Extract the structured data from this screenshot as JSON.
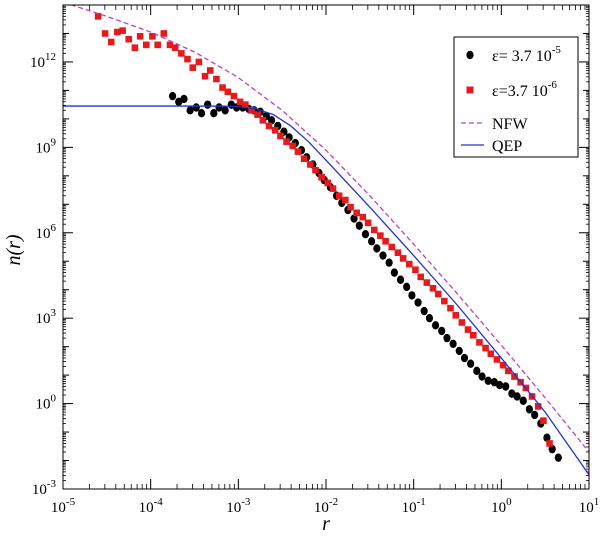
{
  "chart_data": {
    "type": "scatter",
    "title": "",
    "xlabel": "r",
    "ylabel": "n(r)",
    "xscale": "log",
    "yscale": "log",
    "xlim_exp": [
      -5,
      1
    ],
    "ylim_exp": [
      -3,
      14
    ],
    "x_ticks": [
      {
        "base": "10",
        "exp": "-5",
        "v": -5
      },
      {
        "base": "10",
        "exp": "-4",
        "v": -4
      },
      {
        "base": "10",
        "exp": "-3",
        "v": -3
      },
      {
        "base": "10",
        "exp": "-2",
        "v": -2
      },
      {
        "base": "10",
        "exp": "-1",
        "v": -1
      },
      {
        "base": "10",
        "exp": "0",
        "v": 0
      },
      {
        "base": "10",
        "exp": "1",
        "v": 1
      }
    ],
    "y_ticks": [
      {
        "base": "10",
        "exp": "-3",
        "v": -3
      },
      {
        "base": "10",
        "exp": "0",
        "v": 0
      },
      {
        "base": "10",
        "exp": "3",
        "v": 3
      },
      {
        "base": "10",
        "exp": "6",
        "v": 6
      },
      {
        "base": "10",
        "exp": "9",
        "v": 9
      },
      {
        "base": "10",
        "exp": "12",
        "v": 12
      }
    ],
    "legend": {
      "placement": "top-right",
      "entries": [
        {
          "marker": "circle",
          "color": "#000000",
          "eps": "ε= 3.7 10",
          "exp": "-5"
        },
        {
          "marker": "square",
          "color": "#e41a1c",
          "eps": "ε=3.7 10",
          "exp": "-6"
        },
        {
          "marker": "dashed-line",
          "color": "#c040c0",
          "label": "NFW"
        },
        {
          "marker": "line",
          "color": "#2233cc",
          "label": "QEP"
        }
      ]
    },
    "series": [
      {
        "name": "ε= 3.7 10^-5",
        "marker": "circle",
        "color": "#000000",
        "log10_x": [
          -3.75,
          -3.68,
          -3.62,
          -3.55,
          -3.48,
          -3.42,
          -3.35,
          -3.28,
          -3.22,
          -3.15,
          -3.08,
          -3.02,
          -2.95,
          -2.88,
          -2.82,
          -2.75,
          -2.68,
          -2.62,
          -2.55,
          -2.48,
          -2.42,
          -2.35,
          -2.28,
          -2.22,
          -2.15,
          -2.08,
          -2.02,
          -1.95,
          -1.88,
          -1.82,
          -1.75,
          -1.68,
          -1.62,
          -1.55,
          -1.48,
          -1.42,
          -1.35,
          -1.28,
          -1.22,
          -1.15,
          -1.08,
          -1.02,
          -0.95,
          -0.88,
          -0.82,
          -0.75,
          -0.68,
          -0.62,
          -0.55,
          -0.48,
          -0.42,
          -0.35,
          -0.28,
          -0.22,
          -0.15,
          -0.08,
          -0.02,
          0.05,
          0.12,
          0.18,
          0.25,
          0.32,
          0.38,
          0.45,
          0.52,
          0.58,
          0.65
        ],
        "log10_y": [
          10.8,
          10.6,
          10.7,
          10.3,
          10.4,
          10.2,
          10.5,
          10.2,
          10.4,
          10.3,
          10.5,
          10.4,
          10.4,
          10.35,
          10.3,
          10.25,
          10.1,
          9.95,
          9.75,
          9.55,
          9.35,
          9.15,
          8.9,
          8.65,
          8.4,
          8.1,
          7.85,
          7.6,
          7.3,
          7.05,
          6.8,
          6.5,
          6.25,
          5.95,
          5.7,
          5.45,
          5.2,
          4.95,
          4.6,
          4.35,
          4.1,
          3.8,
          3.55,
          3.25,
          3.0,
          2.75,
          2.55,
          2.3,
          2.1,
          1.85,
          1.6,
          1.4,
          1.15,
          0.95,
          0.8,
          0.75,
          0.65,
          0.6,
          0.35,
          0.25,
          0.1,
          -0.2,
          -0.4,
          -0.7,
          -1.2,
          -1.6,
          -1.9
        ]
      },
      {
        "name": "ε=3.7 10^-6",
        "marker": "square",
        "color": "#e41a1c",
        "log10_x": [
          -4.6,
          -4.52,
          -4.45,
          -4.38,
          -4.32,
          -4.25,
          -4.18,
          -4.12,
          -4.05,
          -3.98,
          -3.92,
          -3.85,
          -3.78,
          -3.72,
          -3.65,
          -3.58,
          -3.52,
          -3.45,
          -3.38,
          -3.32,
          -3.25,
          -3.18,
          -3.12,
          -3.05,
          -2.98,
          -2.92,
          -2.85,
          -2.78,
          -2.72,
          -2.65,
          -2.58,
          -2.52,
          -2.45,
          -2.38,
          -2.32,
          -2.25,
          -2.18,
          -2.12,
          -2.05,
          -1.98,
          -1.92,
          -1.85,
          -1.78,
          -1.72,
          -1.65,
          -1.58,
          -1.52,
          -1.45,
          -1.38,
          -1.32,
          -1.25,
          -1.18,
          -1.12,
          -1.05,
          -0.98,
          -0.92,
          -0.85,
          -0.78,
          -0.72,
          -0.65,
          -0.58,
          -0.52,
          -0.45,
          -0.38,
          -0.32,
          -0.25,
          -0.18,
          -0.12,
          -0.05,
          0.02,
          0.08,
          0.15,
          0.22,
          0.28,
          0.35,
          0.42,
          0.48,
          0.55
        ],
        "log10_y": [
          13.6,
          13.0,
          12.7,
          13.05,
          13.1,
          12.8,
          12.5,
          12.9,
          12.6,
          12.9,
          12.6,
          13.0,
          12.6,
          12.5,
          12.3,
          12.1,
          11.8,
          12.0,
          11.5,
          11.7,
          11.4,
          11.1,
          10.95,
          10.8,
          10.6,
          10.5,
          10.3,
          10.15,
          9.95,
          9.75,
          9.6,
          9.4,
          9.2,
          9.05,
          8.85,
          8.6,
          8.4,
          8.2,
          7.95,
          7.75,
          7.55,
          7.3,
          7.15,
          6.9,
          6.7,
          6.55,
          6.35,
          6.1,
          5.9,
          5.7,
          5.5,
          5.3,
          5.1,
          4.9,
          4.7,
          4.45,
          4.25,
          4.05,
          3.85,
          3.6,
          3.35,
          3.1,
          2.85,
          2.6,
          2.4,
          2.15,
          1.95,
          1.75,
          1.55,
          1.35,
          1.15,
          0.95,
          0.75,
          0.55,
          0.25,
          -0.1,
          -0.6,
          -1.4
        ]
      },
      {
        "name": "NFW",
        "line": "dashed",
        "color": "#c040c0",
        "log10_x": [
          -5.0,
          -4.5,
          -4.0,
          -3.5,
          -3.0,
          -2.5,
          -2.0,
          -1.5,
          -1.0,
          -0.5,
          0.0,
          0.5,
          1.0
        ],
        "log10_y": [
          14.1,
          13.6,
          13.05,
          12.35,
          11.45,
          10.3,
          8.9,
          7.3,
          5.6,
          3.85,
          2.05,
          0.2,
          -1.7
        ]
      },
      {
        "name": "QEP",
        "line": "solid",
        "color": "#2233cc",
        "log10_x": [
          -5.0,
          -4.0,
          -3.2,
          -3.0,
          -2.8,
          -2.6,
          -2.4,
          -2.2,
          -2.0,
          -1.5,
          -1.0,
          -0.5,
          0.0,
          0.5,
          1.0
        ],
        "log10_y": [
          10.45,
          10.45,
          10.45,
          10.43,
          10.35,
          10.15,
          9.75,
          9.2,
          8.55,
          6.9,
          5.2,
          3.45,
          1.6,
          -0.3,
          -2.5
        ]
      }
    ]
  }
}
